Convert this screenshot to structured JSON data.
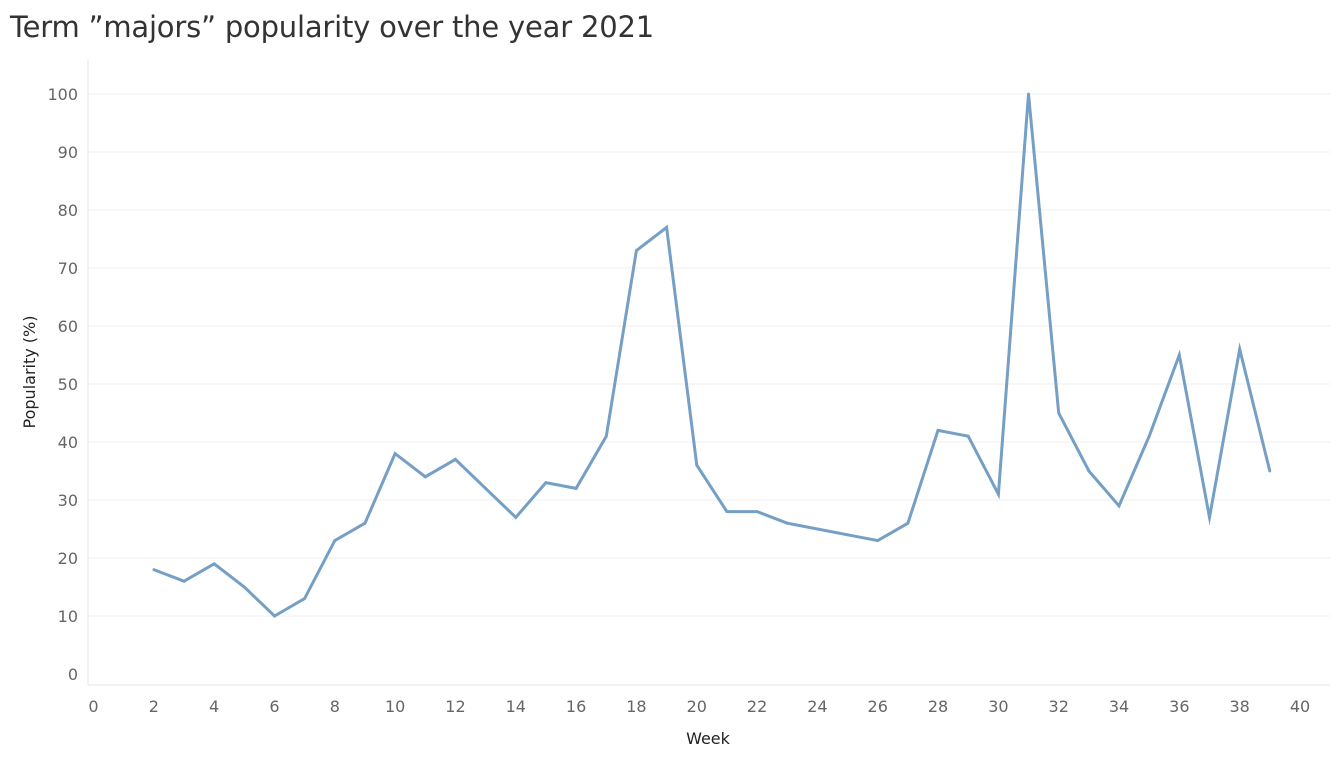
{
  "chart_data": {
    "type": "line",
    "title": "Term ”majors” popularity over the year 2021",
    "xlabel": "Week",
    "ylabel": "Popularity (%)",
    "xlim": [
      0,
      40
    ],
    "ylim": [
      0,
      100
    ],
    "x_ticks": [
      0,
      2,
      4,
      6,
      8,
      10,
      12,
      14,
      16,
      18,
      20,
      22,
      24,
      26,
      28,
      30,
      32,
      34,
      36,
      38,
      40
    ],
    "y_ticks": [
      0,
      10,
      20,
      30,
      40,
      50,
      60,
      70,
      80,
      90,
      100
    ],
    "grid": "horizontal",
    "line_color": "#759fc4",
    "series": [
      {
        "x": [
          2,
          3,
          4,
          5,
          6,
          7,
          8,
          9,
          10,
          11,
          12,
          13,
          14,
          15,
          16,
          17,
          18,
          19,
          20,
          21,
          22,
          23,
          24,
          25,
          26,
          27,
          28,
          29,
          30,
          31,
          32,
          33,
          34,
          35,
          36,
          37,
          38,
          39
        ],
        "values": [
          18,
          16,
          19,
          15,
          10,
          13,
          23,
          26,
          38,
          34,
          37,
          32,
          27,
          33,
          32,
          41,
          73,
          77,
          36,
          28,
          28,
          26,
          25,
          24,
          23,
          26,
          42,
          41,
          31,
          100,
          45,
          35,
          29,
          41,
          55,
          27,
          56,
          35
        ]
      }
    ]
  }
}
